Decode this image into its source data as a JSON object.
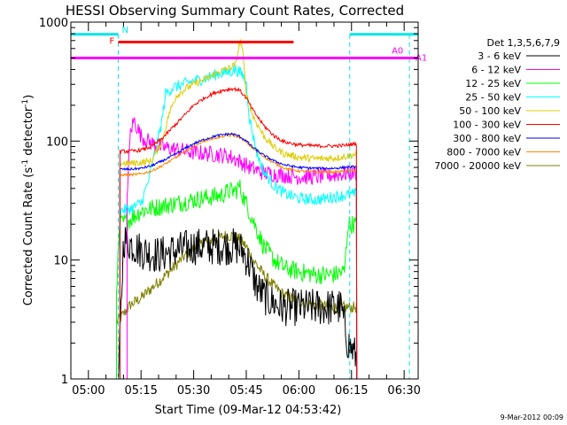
{
  "chart_data": {
    "type": "line",
    "title": "HESSI Observing Summary Count Rates, Corrected",
    "xlabel": "Start Time (09-Mar-12 04:53:42)",
    "ylabel_main": "Corrected Count Rate (s",
    "ylabel_sup1": "-1",
    "ylabel_mid": " detector",
    "ylabel_sup2": "-1",
    "ylabel_end": ")",
    "ylog": true,
    "ylim": [
      1,
      1000
    ],
    "xlim_min": [
      295,
      394
    ],
    "x_ticks": [
      {
        "t": 300,
        "label": "05:00"
      },
      {
        "t": 315,
        "label": "05:15"
      },
      {
        "t": 330,
        "label": "05:30"
      },
      {
        "t": 345,
        "label": "05:45"
      },
      {
        "t": 360,
        "label": "06:00"
      },
      {
        "t": 375,
        "label": "06:15"
      },
      {
        "t": 390,
        "label": "06:30"
      }
    ],
    "y_ticks": [
      {
        "v": 1,
        "label": "1"
      },
      {
        "v": 10,
        "label": "10"
      },
      {
        "v": 100,
        "label": "100"
      },
      {
        "v": 1000,
        "label": "1000"
      }
    ],
    "legend_title": "Det 1,3,5,6,7,9",
    "legend_placement": "right",
    "timestamp": "9-Mar-2012 00:09",
    "series": [
      {
        "name": "3 - 6 keV",
        "color": "#000000",
        "start": 308.5,
        "end": 376.5,
        "points": [
          [
            308.5,
            1
          ],
          [
            309,
            2
          ],
          [
            310,
            15
          ],
          [
            315,
            12
          ],
          [
            320,
            11
          ],
          [
            325,
            12
          ],
          [
            330,
            13
          ],
          [
            335,
            13
          ],
          [
            340,
            13
          ],
          [
            342,
            13
          ],
          [
            344,
            12
          ],
          [
            346,
            9
          ],
          [
            348,
            6
          ],
          [
            350,
            5
          ],
          [
            352,
            4.5
          ],
          [
            355,
            4
          ],
          [
            360,
            4
          ],
          [
            365,
            4
          ],
          [
            370,
            4
          ],
          [
            372,
            4
          ],
          [
            374,
            2
          ],
          [
            376.5,
            1.5
          ]
        ]
      },
      {
        "name": "6 - 12 keV",
        "color": "#ff00ff",
        "start": 311,
        "end": 376.5,
        "points": [
          [
            311,
            35
          ],
          [
            312,
            120
          ],
          [
            313,
            150
          ],
          [
            315,
            110
          ],
          [
            317,
            100
          ],
          [
            320,
            90
          ],
          [
            325,
            85
          ],
          [
            330,
            80
          ],
          [
            335,
            78
          ],
          [
            340,
            75
          ],
          [
            343,
            68
          ],
          [
            346,
            60
          ],
          [
            350,
            54
          ],
          [
            355,
            52
          ],
          [
            360,
            50
          ],
          [
            365,
            50
          ],
          [
            370,
            52
          ],
          [
            375,
            54
          ],
          [
            376.5,
            54
          ]
        ]
      },
      {
        "name": "12 - 25 keV",
        "color": "#00ff00",
        "start": 308,
        "end": 376.5,
        "points": [
          [
            308,
            6
          ],
          [
            309,
            20
          ],
          [
            312,
            22
          ],
          [
            315,
            26
          ],
          [
            320,
            28
          ],
          [
            325,
            30
          ],
          [
            330,
            32
          ],
          [
            335,
            34
          ],
          [
            338,
            35
          ],
          [
            340,
            38
          ],
          [
            342,
            38
          ],
          [
            343,
            42
          ],
          [
            344,
            35
          ],
          [
            346,
            25
          ],
          [
            348,
            18
          ],
          [
            350,
            13
          ],
          [
            353,
            10
          ],
          [
            356,
            8.5
          ],
          [
            360,
            8
          ],
          [
            365,
            7.5
          ],
          [
            370,
            7.5
          ],
          [
            373,
            8
          ],
          [
            374,
            20
          ],
          [
            376.5,
            20
          ]
        ]
      },
      {
        "name": "25 - 50 keV",
        "color": "#00ffff",
        "start": 309,
        "end": 376.5,
        "points": [
          [
            309,
            26
          ],
          [
            312,
            27
          ],
          [
            315,
            30
          ],
          [
            317,
            45
          ],
          [
            319,
            80
          ],
          [
            321,
            150
          ],
          [
            322,
            250
          ],
          [
            324,
            280
          ],
          [
            327,
            300
          ],
          [
            330,
            320
          ],
          [
            334,
            340
          ],
          [
            337,
            370
          ],
          [
            340,
            380
          ],
          [
            342,
            400
          ],
          [
            344,
            360
          ],
          [
            345,
            300
          ],
          [
            346,
            150
          ],
          [
            348,
            80
          ],
          [
            350,
            55
          ],
          [
            353,
            42
          ],
          [
            356,
            36
          ],
          [
            360,
            33
          ],
          [
            365,
            32
          ],
          [
            370,
            34
          ],
          [
            373,
            35
          ],
          [
            376.5,
            36
          ]
        ]
      },
      {
        "name": "50 - 100 keV",
        "color": "#ddcc00",
        "start": 309,
        "end": 376.5,
        "points": [
          [
            309,
            65
          ],
          [
            312,
            65
          ],
          [
            315,
            66
          ],
          [
            318,
            68
          ],
          [
            321,
            100
          ],
          [
            323,
            170
          ],
          [
            325,
            240
          ],
          [
            328,
            280
          ],
          [
            331,
            310
          ],
          [
            334,
            340
          ],
          [
            337,
            380
          ],
          [
            340,
            410
          ],
          [
            342,
            440
          ],
          [
            343,
            650
          ],
          [
            343.5,
            700
          ],
          [
            344,
            550
          ],
          [
            345,
            250
          ],
          [
            347,
            160
          ],
          [
            350,
            110
          ],
          [
            353,
            88
          ],
          [
            356,
            78
          ],
          [
            360,
            73
          ],
          [
            365,
            71
          ],
          [
            370,
            72
          ],
          [
            373,
            74
          ],
          [
            376.5,
            78
          ]
        ]
      },
      {
        "name": "100 - 300 keV",
        "color": "#ff0000",
        "start": 309,
        "end": 376.5,
        "points": [
          [
            309,
            82
          ],
          [
            312,
            82
          ],
          [
            315,
            84
          ],
          [
            318,
            90
          ],
          [
            321,
            105
          ],
          [
            324,
            130
          ],
          [
            327,
            160
          ],
          [
            330,
            200
          ],
          [
            333,
            230
          ],
          [
            336,
            255
          ],
          [
            339,
            270
          ],
          [
            341,
            275
          ],
          [
            343,
            270
          ],
          [
            345,
            230
          ],
          [
            347,
            180
          ],
          [
            350,
            135
          ],
          [
            353,
            110
          ],
          [
            356,
            98
          ],
          [
            360,
            93
          ],
          [
            365,
            91
          ],
          [
            370,
            91
          ],
          [
            373,
            92
          ],
          [
            376.5,
            95
          ]
        ]
      },
      {
        "name": "300 - 800 keV",
        "color": "#0000ff",
        "start": 309,
        "end": 376.5,
        "points": [
          [
            309,
            58
          ],
          [
            312,
            58
          ],
          [
            315,
            59
          ],
          [
            318,
            62
          ],
          [
            321,
            68
          ],
          [
            324,
            75
          ],
          [
            327,
            85
          ],
          [
            330,
            95
          ],
          [
            333,
            103
          ],
          [
            336,
            110
          ],
          [
            339,
            114
          ],
          [
            341,
            115
          ],
          [
            343,
            110
          ],
          [
            345,
            100
          ],
          [
            347,
            88
          ],
          [
            350,
            76
          ],
          [
            353,
            68
          ],
          [
            356,
            63
          ],
          [
            360,
            60
          ],
          [
            365,
            59
          ],
          [
            370,
            59
          ],
          [
            373,
            60
          ],
          [
            376.5,
            61
          ]
        ]
      },
      {
        "name": "800 - 7000 keV",
        "color": "#ff8800",
        "start": 309,
        "end": 376.5,
        "points": [
          [
            309,
            52
          ],
          [
            312,
            52
          ],
          [
            315,
            53
          ],
          [
            318,
            56
          ],
          [
            321,
            62
          ],
          [
            324,
            70
          ],
          [
            327,
            80
          ],
          [
            330,
            90
          ],
          [
            333,
            100
          ],
          [
            336,
            106
          ],
          [
            339,
            110
          ],
          [
            341,
            112
          ],
          [
            343,
            108
          ],
          [
            345,
            98
          ],
          [
            347,
            86
          ],
          [
            350,
            74
          ],
          [
            353,
            65
          ],
          [
            356,
            59
          ],
          [
            360,
            56
          ],
          [
            365,
            55
          ],
          [
            370,
            55
          ],
          [
            373,
            56
          ],
          [
            376.5,
            57
          ]
        ]
      },
      {
        "name": "7000 - 20000 keV",
        "color": "#808000",
        "start": 308,
        "end": 376.5,
        "points": [
          [
            308,
            3
          ],
          [
            310,
            3.5
          ],
          [
            312,
            4.2
          ],
          [
            315,
            4.8
          ],
          [
            318,
            5.8
          ],
          [
            321,
            7
          ],
          [
            324,
            8.5
          ],
          [
            327,
            10.5
          ],
          [
            330,
            12.5
          ],
          [
            333,
            14
          ],
          [
            336,
            15
          ],
          [
            339,
            16
          ],
          [
            341,
            16
          ],
          [
            343,
            15
          ],
          [
            345,
            13
          ],
          [
            347,
            10
          ],
          [
            350,
            7.5
          ],
          [
            353,
            6
          ],
          [
            356,
            5
          ],
          [
            360,
            4.5
          ],
          [
            365,
            4.2
          ],
          [
            370,
            4
          ],
          [
            373,
            4
          ],
          [
            376.5,
            4
          ]
        ]
      }
    ],
    "annotations": {
      "n_label": "N",
      "f_label": "F",
      "a0_label": "A0",
      "a1_label": "A1",
      "n_color": "#00e5e5",
      "f_color": "#ff0000",
      "a_color": "#ff00ff",
      "n_bar": [
        [
          295,
          308.5
        ],
        [
          374.5,
          394
        ]
      ],
      "n_level": 790,
      "n_dash_x": [
        308.5,
        374.5,
        391.5
      ],
      "f_bar": [
        308.5,
        358.5
      ],
      "f_level": 680,
      "a_level": 500
    }
  }
}
